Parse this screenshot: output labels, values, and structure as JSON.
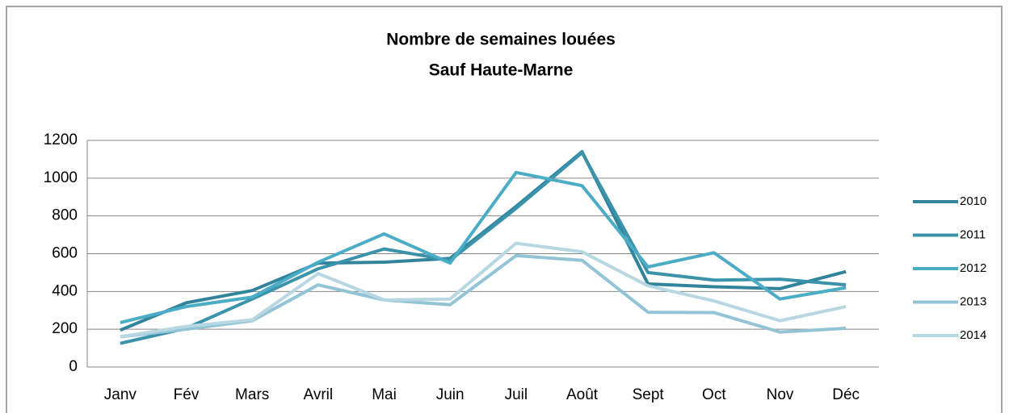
{
  "chart_data": {
    "type": "line",
    "title": "Nombre de semaines louées",
    "subtitle": "Sauf Haute-Marne",
    "categories": [
      "Janv",
      "Fév",
      "Mars",
      "Avril",
      "Mai",
      "Juin",
      "Juil",
      "Août",
      "Sept",
      "Oct",
      "Nov",
      "Déc"
    ],
    "series": [
      {
        "name": "2010",
        "color": "#31849b",
        "values": [
          195,
          340,
          405,
          550,
          555,
          575,
          850,
          1140,
          440,
          425,
          415,
          505
        ]
      },
      {
        "name": "2011",
        "color": "#3a92ab",
        "values": [
          125,
          205,
          360,
          520,
          625,
          565,
          840,
          1135,
          500,
          460,
          465,
          435
        ]
      },
      {
        "name": "2012",
        "color": "#4bacc6",
        "values": [
          235,
          320,
          370,
          555,
          705,
          550,
          1030,
          960,
          530,
          605,
          360,
          420
        ]
      },
      {
        "name": "2013",
        "color": "#92c4d6",
        "values": [
          160,
          200,
          245,
          435,
          355,
          330,
          590,
          565,
          290,
          288,
          185,
          205
        ]
      },
      {
        "name": "2014",
        "color": "#b7d7e3",
        "values": [
          160,
          215,
          250,
          495,
          355,
          360,
          655,
          610,
          430,
          350,
          245,
          320
        ]
      }
    ],
    "ylim": [
      0,
      1200
    ],
    "yticks": [
      0,
      200,
      400,
      600,
      800,
      1000,
      1200
    ],
    "grid": true,
    "legend": "right"
  }
}
